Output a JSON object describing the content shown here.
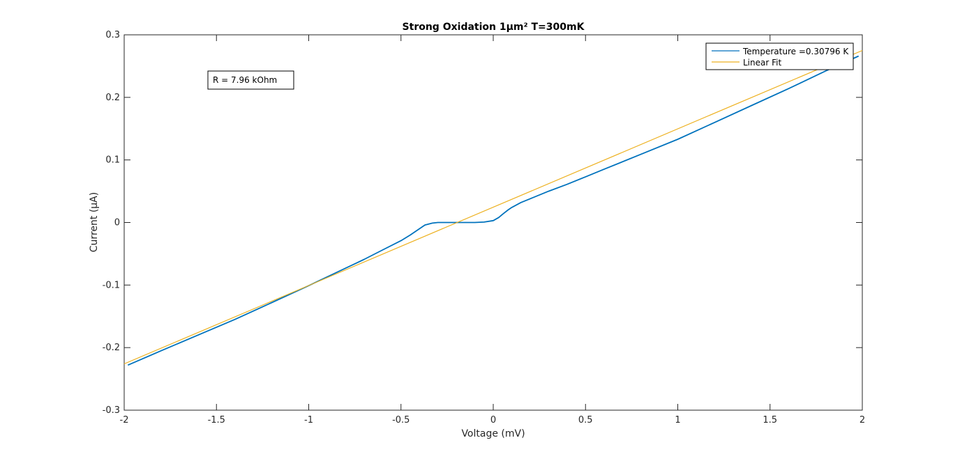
{
  "chart_data": {
    "type": "line",
    "title": "Strong Oxidation 1μm² T=300mK",
    "xlabel": "Voltage (mV)",
    "ylabel": "Current (μA)",
    "xlim": [
      -2,
      2
    ],
    "ylim": [
      -0.3,
      0.3
    ],
    "xticks": [
      -2,
      -1.5,
      -1,
      -0.5,
      0,
      0.5,
      1,
      1.5,
      2
    ],
    "xtick_labels": [
      "-2",
      "-1.5",
      "-1",
      "-0.5",
      "0",
      "0.5",
      "1",
      "1.5",
      "2"
    ],
    "yticks": [
      -0.3,
      -0.2,
      -0.1,
      0,
      0.1,
      0.2,
      0.3
    ],
    "ytick_labels": [
      "-0.3",
      "-0.2",
      "-0.1",
      "0",
      "0.1",
      "0.2",
      "0.3"
    ],
    "grid": false,
    "legend_placement": "top-right",
    "annotation": "R = 7.96 kOhm",
    "series": [
      {
        "name": "Temperature =0.30796 K",
        "color": "#0072BD",
        "x": [
          -1.98,
          -1.8,
          -1.6,
          -1.4,
          -1.2,
          -1.0,
          -0.8,
          -0.7,
          -0.6,
          -0.5,
          -0.45,
          -0.4,
          -0.37,
          -0.33,
          -0.3,
          -0.2,
          -0.1,
          -0.05,
          0.0,
          0.03,
          0.05,
          0.08,
          0.1,
          0.15,
          0.2,
          0.3,
          0.4,
          0.5,
          0.6,
          0.8,
          1.0,
          1.2,
          1.4,
          1.6,
          1.8,
          1.98
        ],
        "y": [
          -0.228,
          -0.205,
          -0.18,
          -0.155,
          -0.128,
          -0.101,
          -0.073,
          -0.059,
          -0.044,
          -0.029,
          -0.02,
          -0.01,
          -0.004,
          -0.001,
          0.0,
          0.0,
          0.0,
          0.0007,
          0.003,
          0.008,
          0.013,
          0.02,
          0.024,
          0.032,
          0.038,
          0.05,
          0.061,
          0.073,
          0.085,
          0.109,
          0.133,
          0.16,
          0.187,
          0.214,
          0.242,
          0.266
        ]
      },
      {
        "name": "Linear Fit",
        "color": "#EDB120",
        "x": [
          -2,
          2
        ],
        "y": [
          -0.226,
          0.275
        ]
      }
    ]
  }
}
